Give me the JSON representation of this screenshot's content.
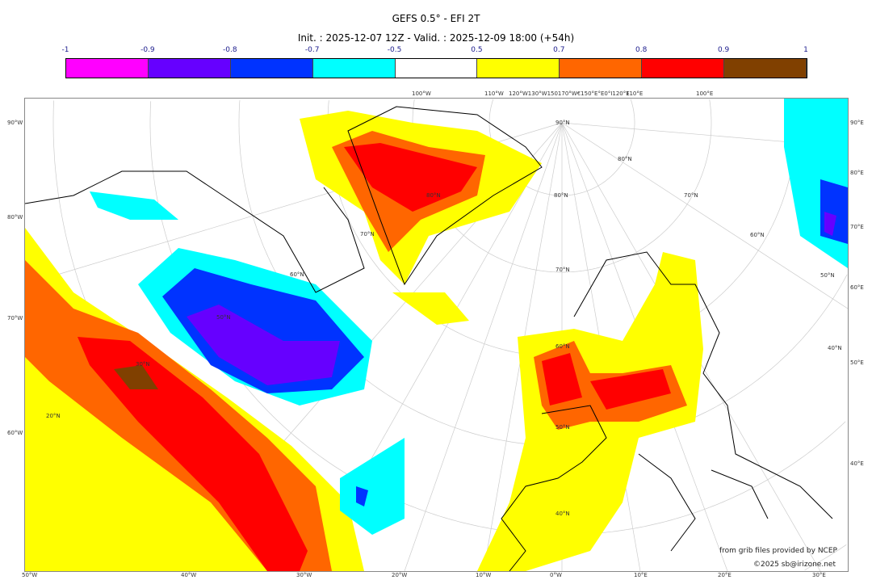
{
  "title": "GEFS 0.5° - EFI 2T",
  "subtitle": "Init. : 2025-12-07 12Z - Valid. : 2025-12-09 18:00 (+54h)",
  "colorbar": {
    "ticks": [
      "-1",
      "-0.9",
      "-0.8",
      "-0.7",
      "-0.5",
      "0.5",
      "0.7",
      "0.8",
      "0.9",
      "1"
    ],
    "colors": [
      "#ff00ff",
      "#6600ff",
      "#0033ff",
      "#00ffff",
      "#ffffff",
      "#ffff00",
      "#ff6600",
      "#ff0000",
      "#804000"
    ]
  },
  "axes": {
    "left": [
      "90°W",
      "80°W",
      "70°W",
      "60°W"
    ],
    "right": [
      "90°E",
      "80°E",
      "70°E",
      "60°E",
      "50°E",
      "40°E"
    ],
    "bottom": [
      "50°W",
      "40°W",
      "30°W",
      "20°W",
      "10°W",
      "0°W",
      "10°E",
      "20°E",
      "30°E"
    ],
    "top": [
      "100°W",
      "110°W",
      "120°W130°W150170°W€150°E°E0°I120°E",
      "110°E",
      "100°E"
    ],
    "inner": [
      "90°N",
      "80°N",
      "70°N",
      "60°N",
      "50°N",
      "40°N",
      "30°N",
      "20°N",
      "80°N",
      "70°N",
      "60°N",
      "50°N",
      "80°N",
      "70°N",
      "60°N",
      "50°N",
      "40°N"
    ]
  },
  "credits": {
    "source": "from grib files provided by NCEP",
    "copyright": "©2025 sb@irizone.net"
  }
}
